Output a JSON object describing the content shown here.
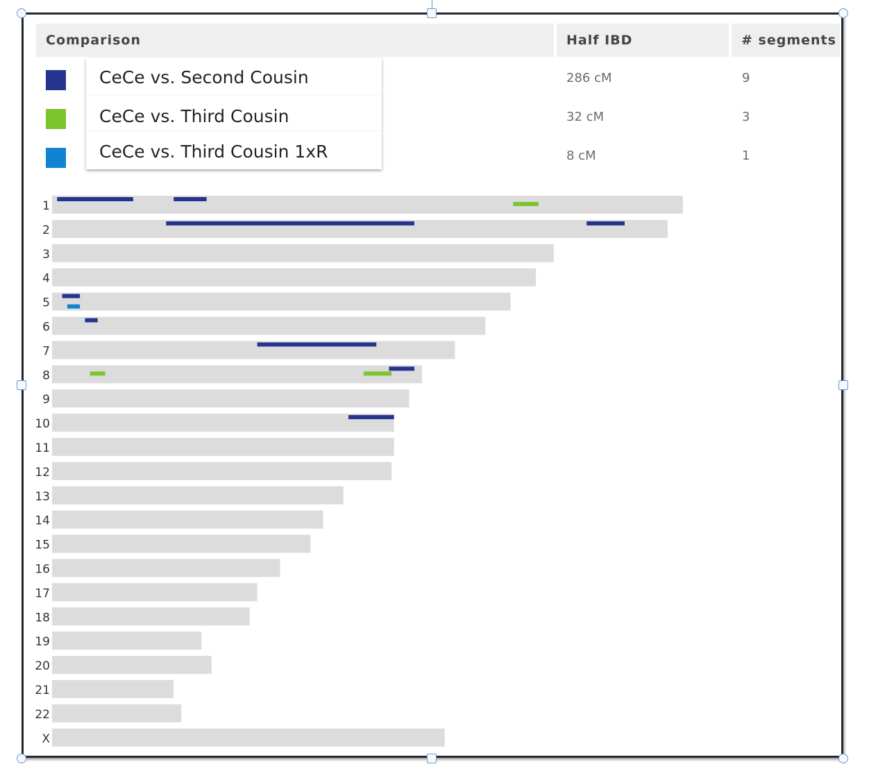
{
  "table": {
    "headers": {
      "comparison": "Comparison",
      "half_ibd": "Half IBD",
      "segments": "# segments"
    },
    "rows": [
      {
        "label": "CeCe vs. Second Cousin",
        "half_ibd": "286 cM",
        "segments": "9",
        "color": "#26348f"
      },
      {
        "label": "CeCe vs. Third Cousin",
        "half_ibd": "32 cM",
        "segments": "3",
        "color": "#7cc52e"
      },
      {
        "label": "CeCe vs. Third Cousin 1xR",
        "half_ibd": "8 cM",
        "segments": "1",
        "color": "#1182d4"
      }
    ]
  },
  "chart_data": {
    "type": "bar",
    "categories": [
      "1",
      "2",
      "3",
      "4",
      "5",
      "6",
      "7",
      "8",
      "9",
      "10",
      "11",
      "12",
      "13",
      "14",
      "15",
      "16",
      "17",
      "18",
      "19",
      "20",
      "21",
      "22",
      "X"
    ],
    "values": [
      249,
      243,
      198,
      191,
      181,
      171,
      159,
      146,
      141,
      135,
      135,
      134,
      115,
      107,
      102,
      90,
      81,
      78,
      59,
      63,
      48,
      51,
      155
    ],
    "bar_color": "#dcdcdc",
    "series": [
      {
        "name": "CeCe vs. Second Cousin",
        "color": "#26348f",
        "segments": [
          {
            "chromosome": "1",
            "start": 2,
            "end": 32
          },
          {
            "chromosome": "1",
            "start": 48,
            "end": 61
          },
          {
            "chromosome": "2",
            "start": 45,
            "end": 143
          },
          {
            "chromosome": "2",
            "start": 211,
            "end": 226
          },
          {
            "chromosome": "5",
            "start": 4,
            "end": 11
          },
          {
            "chromosome": "6",
            "start": 13,
            "end": 18
          },
          {
            "chromosome": "7",
            "start": 81,
            "end": 128
          },
          {
            "chromosome": "8",
            "start": 133,
            "end": 143
          },
          {
            "chromosome": "10",
            "start": 117,
            "end": 135
          }
        ]
      },
      {
        "name": "CeCe vs. Third Cousin",
        "color": "#7cc52e",
        "segments": [
          {
            "chromosome": "1",
            "start": 182,
            "end": 192
          },
          {
            "chromosome": "8",
            "start": 15,
            "end": 21
          },
          {
            "chromosome": "8",
            "start": 123,
            "end": 134
          }
        ]
      },
      {
        "name": "CeCe vs. Third Cousin 1xR",
        "color": "#1182d4",
        "segments": [
          {
            "chromosome": "5",
            "start": 6,
            "end": 11
          }
        ]
      }
    ]
  }
}
